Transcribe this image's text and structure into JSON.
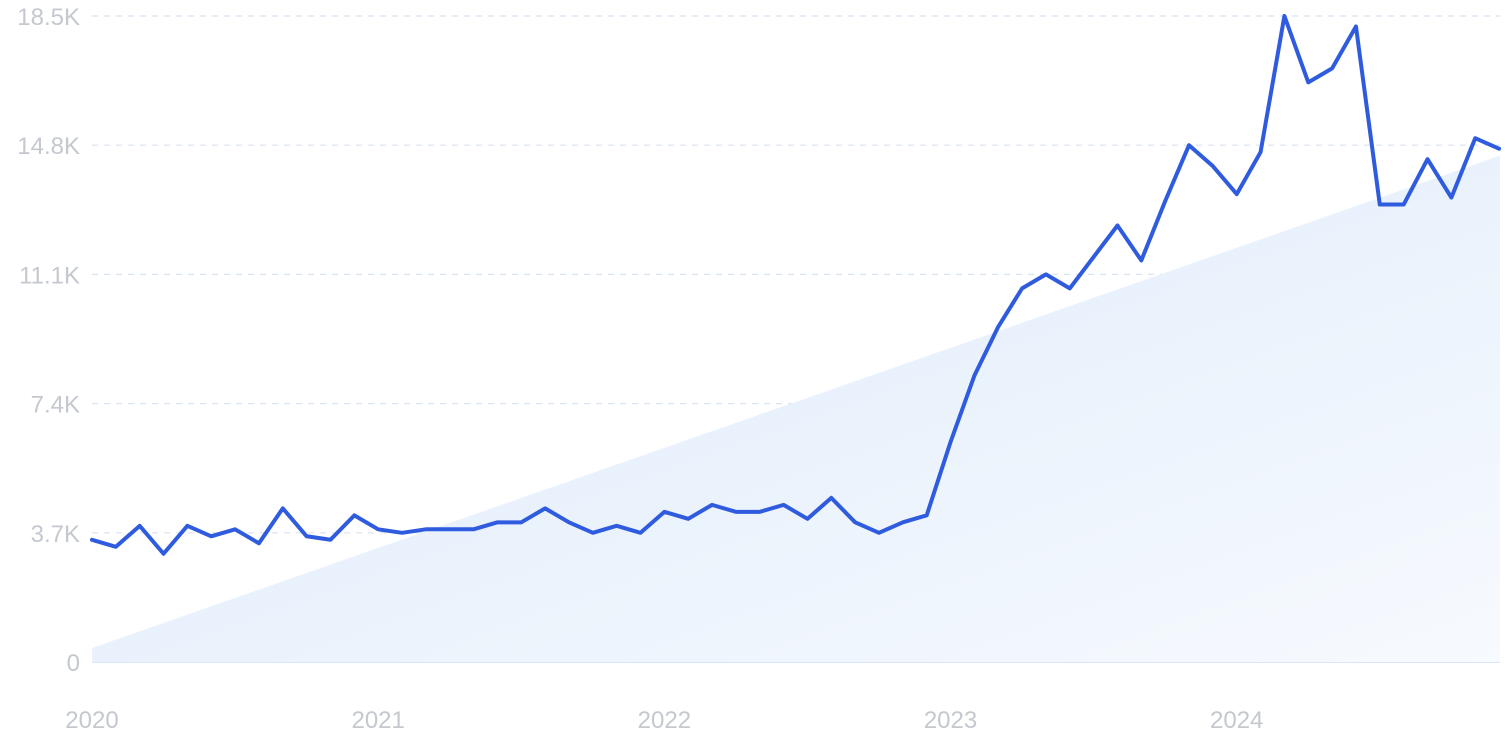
{
  "chart_data": {
    "type": "line",
    "y_ticks": [
      {
        "value": 0,
        "label": "0"
      },
      {
        "value": 3700,
        "label": "3.7K"
      },
      {
        "value": 7400,
        "label": "7.4K"
      },
      {
        "value": 11100,
        "label": "11.1K"
      },
      {
        "value": 14800,
        "label": "14.8K"
      },
      {
        "value": 18500,
        "label": "18.5K"
      }
    ],
    "x_ticks": [
      {
        "value": 2020.0,
        "label": "2020"
      },
      {
        "value": 2021.0,
        "label": "2021"
      },
      {
        "value": 2022.0,
        "label": "2022"
      },
      {
        "value": 2023.0,
        "label": "2023"
      },
      {
        "value": 2024.0,
        "label": "2024"
      }
    ],
    "ylim": [
      0,
      18500
    ],
    "xlim": [
      2020.0,
      2024.92
    ],
    "grid": "horizontal dashed",
    "trend": {
      "start": 400,
      "end": 14500
    },
    "colors": {
      "line": "#2f5bde",
      "trend_fill": "#dbe9fa",
      "grid": "#d8e4f2",
      "tick": "#c4c8cf"
    },
    "series": [
      {
        "x": [
          "2020-01",
          "2020-02",
          "2020-03",
          "2020-04",
          "2020-05",
          "2020-06",
          "2020-07",
          "2020-08",
          "2020-09",
          "2020-10",
          "2020-11",
          "2020-12",
          "2021-01",
          "2021-02",
          "2021-03",
          "2021-04",
          "2021-05",
          "2021-06",
          "2021-07",
          "2021-08",
          "2021-09",
          "2021-10",
          "2021-11",
          "2021-12",
          "2022-01",
          "2022-02",
          "2022-03",
          "2022-04",
          "2022-05",
          "2022-06",
          "2022-07",
          "2022-08",
          "2022-09",
          "2022-10",
          "2022-11",
          "2022-12",
          "2023-01",
          "2023-02",
          "2023-03",
          "2023-04",
          "2023-05",
          "2023-06",
          "2023-07",
          "2023-08",
          "2023-09",
          "2023-10",
          "2023-11",
          "2023-12",
          "2024-01",
          "2024-02",
          "2024-03",
          "2024-04",
          "2024-05",
          "2024-06",
          "2024-07",
          "2024-08",
          "2024-09",
          "2024-10",
          "2024-11",
          "2024-12"
        ],
        "values": [
          3500,
          3300,
          3900,
          3100,
          3900,
          3600,
          3800,
          3400,
          4400,
          3600,
          3500,
          4200,
          3800,
          3700,
          3800,
          3800,
          3800,
          4000,
          4000,
          4400,
          4000,
          3700,
          3900,
          3700,
          4300,
          4100,
          4500,
          4300,
          4300,
          4500,
          4100,
          4700,
          4000,
          3700,
          4000,
          4200,
          6300,
          8200,
          9600,
          10700,
          11100,
          10700,
          11600,
          12500,
          11500,
          13200,
          14800,
          14200,
          13400,
          14600,
          18500,
          16600,
          17000,
          18200,
          13100,
          13100,
          14400,
          13300,
          15000,
          14700
        ]
      }
    ]
  }
}
